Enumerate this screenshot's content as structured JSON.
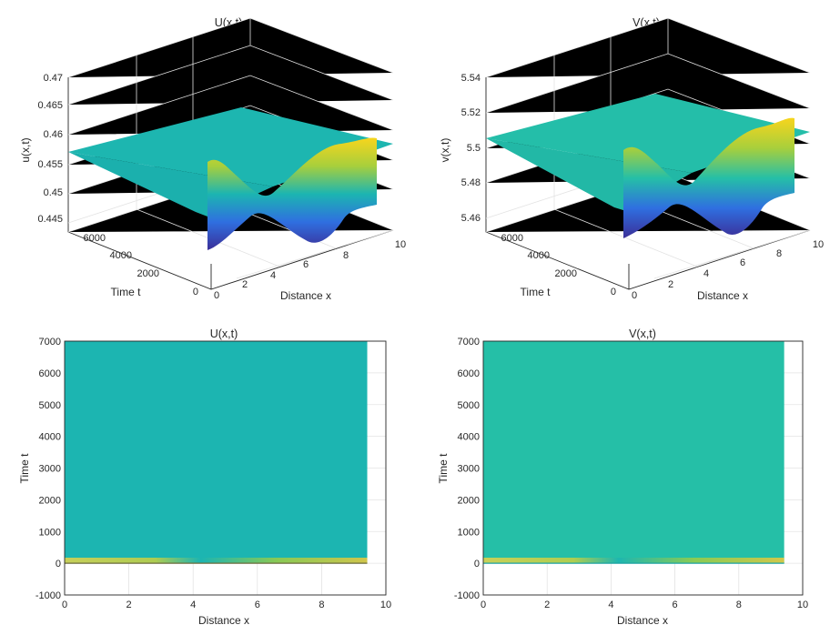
{
  "chart_data": [
    {
      "type": "surface3d",
      "title": "U(x,t)",
      "xlabel": "Distance x",
      "ylabel": "Time t",
      "zlabel": "u(x,t)",
      "xlim": [
        0,
        10
      ],
      "ylim": [
        0,
        7000
      ],
      "zlim": [
        0.445,
        0.47
      ],
      "xticks": [
        "0",
        "2",
        "4",
        "6",
        "8",
        "10"
      ],
      "yticks": [
        "0",
        "2000",
        "4000",
        "6000"
      ],
      "zticks": [
        "0.445",
        "0.45",
        "0.455",
        "0.46",
        "0.465",
        "0.47"
      ],
      "steady_value": 0.4565,
      "initial_profile": {
        "x": [
          0,
          1.5,
          3.1,
          4.7,
          6.3,
          7.9,
          9.4
        ],
        "z": [
          0.4565,
          0.4545,
          0.4548,
          0.4565,
          0.4582,
          0.4585,
          0.4565
        ]
      }
    },
    {
      "type": "surface3d",
      "title": "V(x,t)",
      "xlabel": "Distance x",
      "ylabel": "Time t",
      "zlabel": "v(x,t)",
      "xlim": [
        0,
        10
      ],
      "ylim": [
        0,
        7000
      ],
      "zlim": [
        5.46,
        5.54
      ],
      "xticks": [
        "0",
        "2",
        "4",
        "6",
        "8",
        "10"
      ],
      "yticks": [
        "0",
        "2000",
        "4000",
        "6000"
      ],
      "zticks": [
        "5.46",
        "5.48",
        "5.5",
        "5.52",
        "5.54"
      ],
      "steady_value": 5.505,
      "initial_profile": {
        "x": [
          0,
          1.5,
          3.1,
          4.7,
          6.3,
          7.9,
          9.4
        ],
        "z": [
          5.505,
          5.497,
          5.498,
          5.505,
          5.512,
          5.513,
          5.505
        ]
      }
    },
    {
      "type": "heatmap",
      "title": "U(x,t)",
      "xlabel": "Distance x",
      "ylabel": "Time t",
      "xlim": [
        0,
        10
      ],
      "ylim": [
        -1000,
        7000
      ],
      "xticks": [
        "0",
        "2",
        "4",
        "6",
        "8",
        "10"
      ],
      "yticks": [
        "-1000",
        "0",
        "1000",
        "2000",
        "3000",
        "4000",
        "5000",
        "6000",
        "7000"
      ],
      "x_extent": [
        0,
        9.42
      ],
      "t_extent": [
        0,
        7000
      ],
      "transient_until": 500
    },
    {
      "type": "heatmap",
      "title": "V(x,t)",
      "xlabel": "Distance x",
      "ylabel": "Time t",
      "xlim": [
        0,
        10
      ],
      "ylim": [
        -1000,
        7000
      ],
      "xticks": [
        "0",
        "2",
        "4",
        "6",
        "8",
        "10"
      ],
      "yticks": [
        "-1000",
        "0",
        "1000",
        "2000",
        "3000",
        "4000",
        "5000",
        "6000",
        "7000"
      ],
      "x_extent": [
        0,
        9.42
      ],
      "t_extent": [
        0,
        7000
      ],
      "transient_until": 500
    }
  ],
  "colors": {
    "u_surface": "#1db6b0",
    "v_surface": "#24bea9",
    "u_map": "#1cb5b1",
    "v_map": "#25bfa7"
  }
}
